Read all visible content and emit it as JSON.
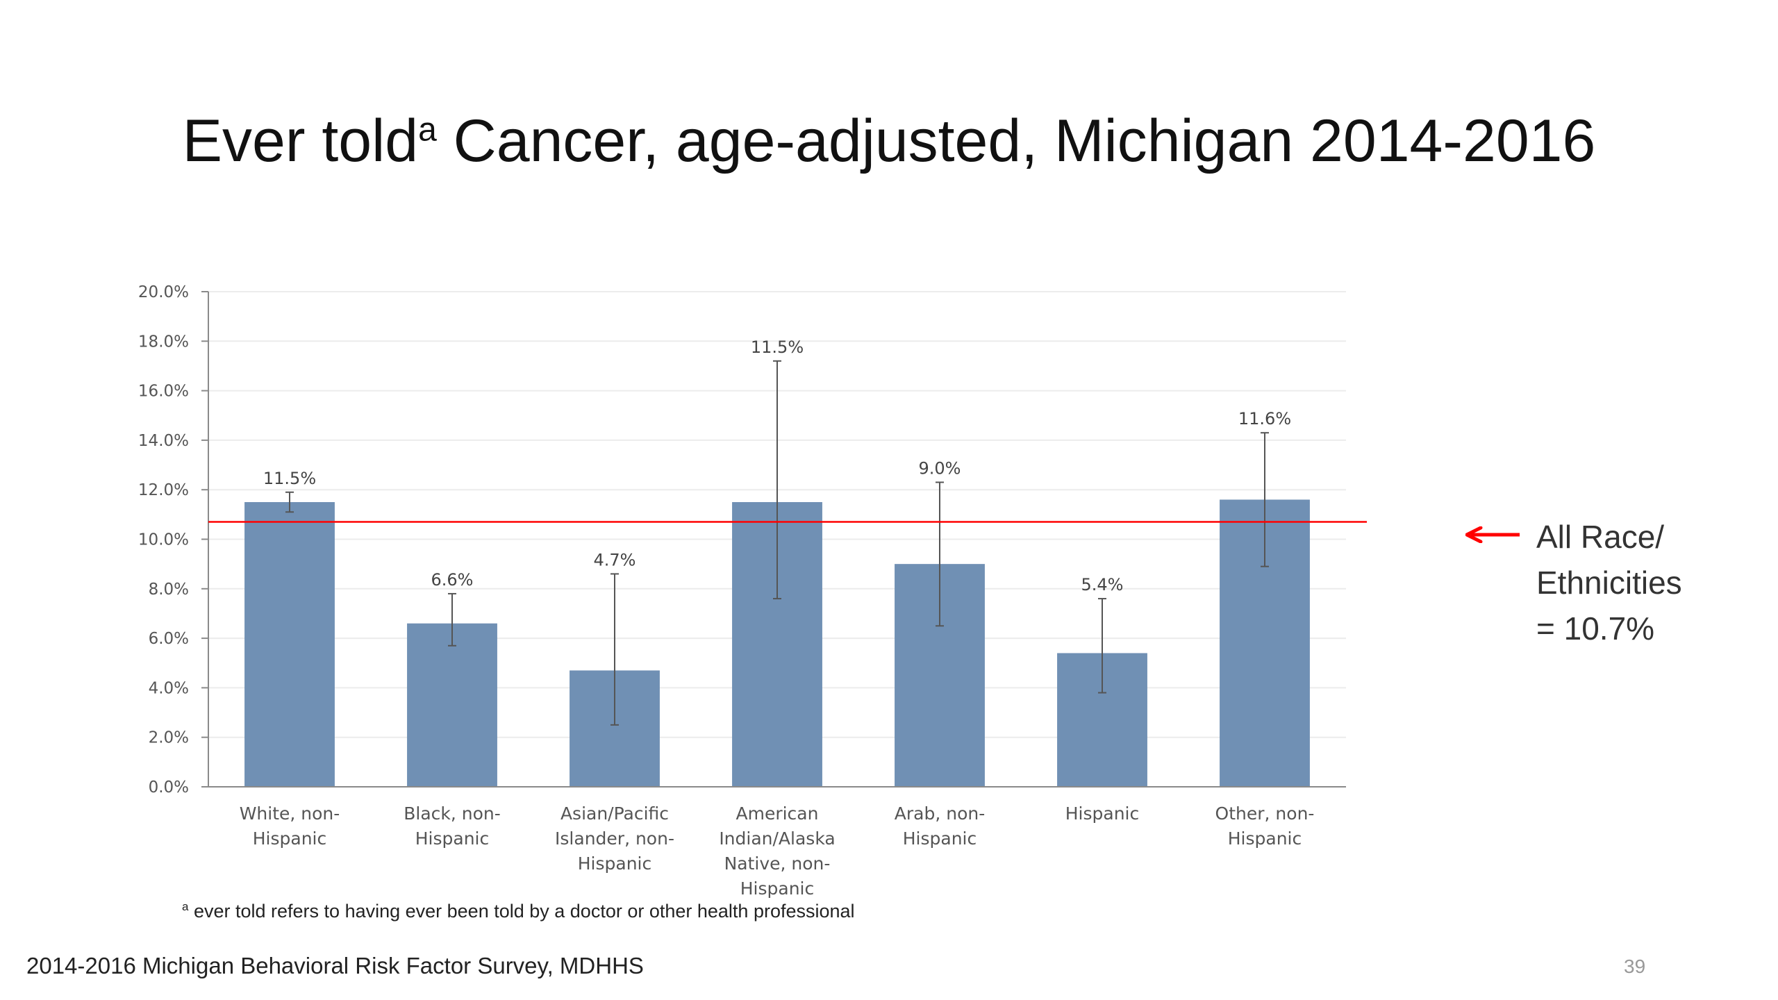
{
  "slide": {
    "title_main": "Ever told",
    "title_sup": "a",
    "title_rest": " Cancer, age-adjusted, Michigan 2014-2016",
    "footnote_sup": "a",
    "footnote_text": " ever told refers to having ever been told by a doctor or other health professional",
    "source": "2014-2016 Michigan Behavioral Risk Factor Survey, MDHHS",
    "page_number": "39"
  },
  "reference": {
    "lines": [
      "All Race/",
      "Ethnicities",
      "= 10.7%"
    ],
    "value": 10.7,
    "color": "#ff0000"
  },
  "chart_data": {
    "type": "bar",
    "title": "",
    "xlabel": "",
    "ylabel": "",
    "ylim": [
      0,
      20
    ],
    "y_ticks": [
      "0.0%",
      "2.0%",
      "4.0%",
      "6.0%",
      "8.0%",
      "10.0%",
      "12.0%",
      "14.0%",
      "16.0%",
      "18.0%",
      "20.0%"
    ],
    "grid": true,
    "bar_color": "#7090b4",
    "categories": [
      [
        "White, non-",
        "Hispanic"
      ],
      [
        "Black, non-",
        "Hispanic"
      ],
      [
        "Asian/Pacific",
        "Islander, non-",
        "Hispanic"
      ],
      [
        "American",
        "Indian/Alaska",
        "Native, non-",
        "Hispanic"
      ],
      [
        "Arab, non-",
        "Hispanic"
      ],
      [
        "Hispanic"
      ],
      [
        "Other, non-",
        "Hispanic"
      ]
    ],
    "values": [
      11.5,
      6.6,
      4.7,
      11.5,
      9.0,
      5.4,
      11.6
    ],
    "data_labels": [
      "11.5%",
      "6.6%",
      "4.7%",
      "11.5%",
      "9.0%",
      "5.4%",
      "11.6%"
    ],
    "ci_low": [
      11.1,
      5.7,
      2.5,
      7.6,
      6.5,
      3.8,
      8.9
    ],
    "ci_high": [
      11.9,
      7.8,
      8.6,
      17.2,
      12.3,
      7.6,
      14.3
    ]
  }
}
